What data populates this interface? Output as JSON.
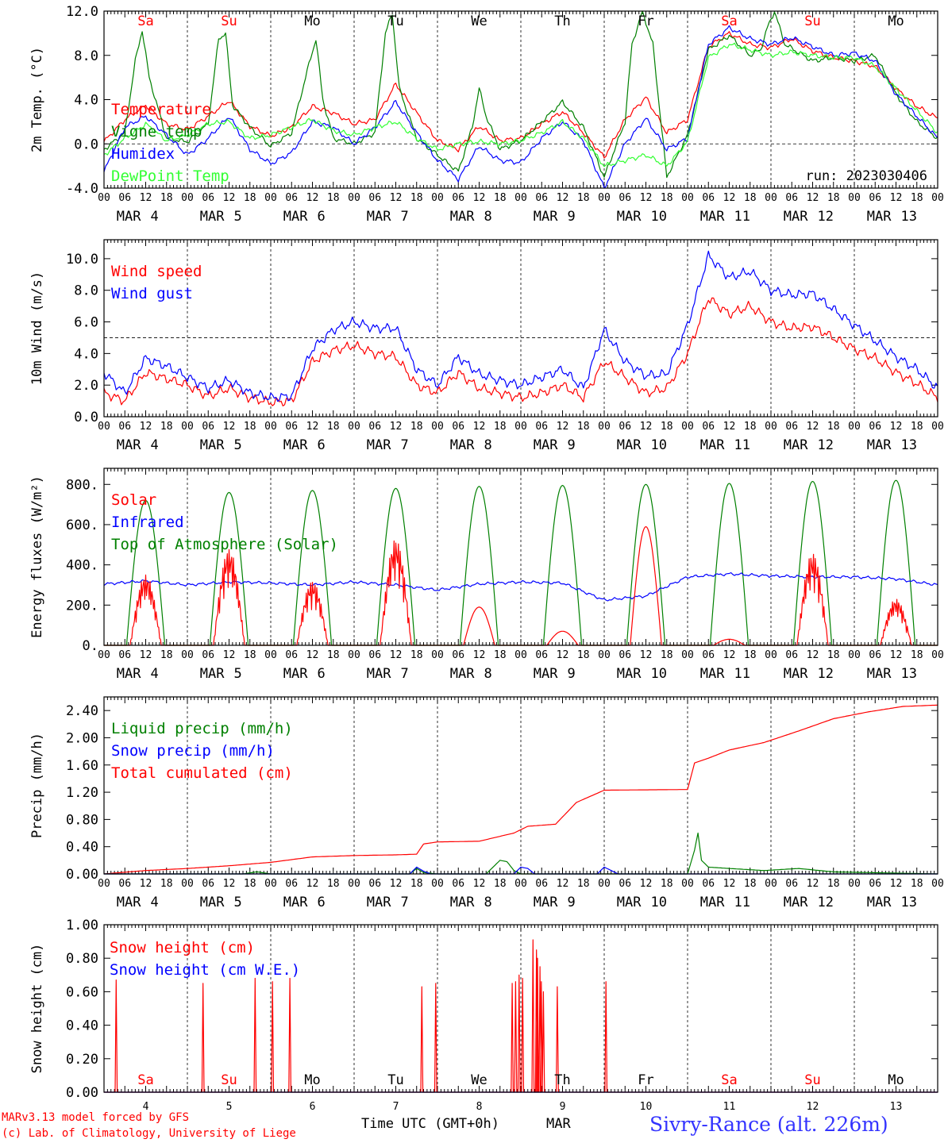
{
  "colors": {
    "red": "#ff0000",
    "green": "#008000",
    "blue": "#0000ff",
    "lightgreen": "#33ff33",
    "black": "#000000",
    "title": "#3333ff"
  },
  "days": {
    "numbers": [
      "4",
      "5",
      "6",
      "7",
      "8",
      "9",
      "10",
      "11",
      "12",
      "13"
    ],
    "month": "MAR",
    "names": [
      "Sa",
      "Su",
      "Mo",
      "Tu",
      "We",
      "Th",
      "Fr",
      "Sa",
      "Su",
      "Mo"
    ],
    "name_colors": [
      "red",
      "red",
      "black",
      "black",
      "black",
      "black",
      "black",
      "red",
      "red",
      "black"
    ],
    "hour_labels": [
      "00",
      "06",
      "12",
      "18"
    ]
  },
  "run_label": "run: 2023030406",
  "footer": {
    "credit1": "MARv3.13 model forced by GFS",
    "credit2": "(c) Lab. of Climatology, University of Liege",
    "time_label": "Time UTC (GMT+0h)",
    "month_label": "MAR",
    "station": "Sivry-Rance (alt. 226m)"
  },
  "chart_data": [
    {
      "type": "line",
      "ylabel": "2m Temp. (°C)",
      "ylim": [
        -4,
        12
      ],
      "yticks": [
        "-4.0",
        "0.0",
        "4.0",
        "8.0",
        "12.0"
      ],
      "hline": 0,
      "legend": [
        {
          "name": "Temperature",
          "color": "red"
        },
        {
          "name": "Vigne temp",
          "color": "green"
        },
        {
          "name": "Humidex",
          "color": "blue"
        },
        {
          "name": "DewPoint Temp",
          "color": "lightgreen"
        }
      ],
      "series": [
        {
          "name": "Temperature",
          "color": "red",
          "x": [
            0,
            6,
            12,
            18,
            24,
            30,
            36,
            42,
            48,
            54,
            60,
            66,
            72,
            78,
            84,
            90,
            96,
            102,
            108,
            114,
            120,
            126,
            132,
            138,
            144,
            150,
            156,
            162,
            168,
            174,
            180,
            186,
            192,
            198,
            204,
            210,
            216,
            222,
            228,
            234,
            240
          ],
          "y": [
            0.2,
            2.2,
            3.5,
            1.8,
            1.3,
            2.5,
            3.9,
            1.6,
            0.7,
            1.5,
            3.4,
            2.8,
            1.8,
            2.2,
            5.4,
            2.8,
            0.3,
            -0.5,
            1.6,
            0.3,
            0.5,
            1.8,
            2.9,
            1.0,
            -1.2,
            2.2,
            4.2,
            1.0,
            2.2,
            8.8,
            10.0,
            9.0,
            8.7,
            9.5,
            8.4,
            7.8,
            7.5,
            7.0,
            5.0,
            3.4,
            2.3
          ]
        },
        {
          "name": "Vigne temp",
          "color": "green",
          "x": [
            0,
            6,
            9,
            11,
            13,
            18,
            24,
            30,
            33,
            35,
            37,
            42,
            48,
            54,
            58,
            61,
            63,
            66,
            72,
            78,
            81,
            83,
            85,
            90,
            96,
            102,
            106,
            108,
            110,
            114,
            120,
            126,
            132,
            138,
            144,
            150,
            152,
            155,
            158,
            162,
            168,
            174,
            180,
            186,
            189,
            191,
            193,
            196,
            204,
            210,
            216,
            222,
            228,
            234,
            240
          ],
          "y": [
            -0.5,
            1.0,
            7.5,
            10.3,
            6.0,
            0.5,
            0.2,
            1.8,
            9.5,
            10.0,
            3.5,
            1.5,
            -0.2,
            1.0,
            6.0,
            9.5,
            4.0,
            0.5,
            0.0,
            1.0,
            10.0,
            11.8,
            5.0,
            0.5,
            -1.0,
            -2.5,
            1.5,
            5.0,
            2.5,
            -0.5,
            0.3,
            2.0,
            3.8,
            1.5,
            -3.0,
            2.0,
            9.0,
            12.0,
            9.0,
            -3.0,
            0.8,
            8.5,
            9.8,
            8.0,
            8.5,
            10.5,
            12.0,
            9.0,
            7.5,
            7.8,
            7.5,
            8.0,
            4.5,
            2.0,
            0.5
          ]
        },
        {
          "name": "Humidex",
          "color": "blue",
          "x": [
            0,
            6,
            12,
            18,
            24,
            30,
            36,
            42,
            48,
            54,
            60,
            66,
            72,
            78,
            84,
            90,
            96,
            102,
            108,
            114,
            120,
            126,
            132,
            138,
            144,
            150,
            156,
            162,
            168,
            174,
            180,
            186,
            192,
            198,
            204,
            210,
            216,
            222,
            228,
            234,
            240
          ],
          "y": [
            -2.5,
            1.5,
            2.5,
            0.8,
            -1.0,
            0.5,
            2.5,
            -0.5,
            -1.8,
            -0.8,
            2.0,
            1.5,
            0.0,
            1.5,
            3.8,
            1.0,
            -1.5,
            -3.2,
            -0.2,
            -1.5,
            -1.7,
            0.5,
            2.0,
            0.3,
            -4.0,
            0.0,
            2.3,
            -0.5,
            0.5,
            9.0,
            10.5,
            9.5,
            9.0,
            9.6,
            8.8,
            8.0,
            8.2,
            7.5,
            4.5,
            2.5,
            0.5
          ]
        },
        {
          "name": "DewPoint Temp",
          "color": "lightgreen",
          "x": [
            0,
            6,
            12,
            18,
            24,
            30,
            36,
            42,
            48,
            54,
            60,
            66,
            72,
            78,
            84,
            90,
            96,
            102,
            108,
            114,
            120,
            126,
            132,
            138,
            144,
            150,
            156,
            162,
            168,
            174,
            180,
            186,
            192,
            198,
            204,
            210,
            216,
            222,
            228,
            234,
            240
          ],
          "y": [
            -1.0,
            0.5,
            1.8,
            0.3,
            0.8,
            1.8,
            2.0,
            0.5,
            0.8,
            1.5,
            2.2,
            1.2,
            0.8,
            1.5,
            2.0,
            0.5,
            -0.5,
            0.0,
            0.2,
            0.0,
            0.3,
            1.0,
            2.0,
            0.5,
            -2.0,
            -1.5,
            -1.0,
            -2.0,
            0.2,
            7.8,
            9.0,
            8.5,
            8.0,
            8.3,
            8.0,
            7.8,
            7.8,
            7.0,
            5.0,
            3.0,
            1.0
          ]
        }
      ]
    },
    {
      "type": "line",
      "ylabel": "10m Wind (m/s)",
      "ylim": [
        0,
        11.2
      ],
      "yticks": [
        "0.0",
        "2.0",
        "4.0",
        "6.0",
        "8.0",
        "10.0"
      ],
      "hline": 5,
      "legend": [
        {
          "name": "Wind speed",
          "color": "red"
        },
        {
          "name": "Wind gust",
          "color": "blue"
        }
      ],
      "series": [
        {
          "name": "Wind speed",
          "color": "red",
          "x": [
            0,
            6,
            12,
            18,
            24,
            30,
            36,
            42,
            48,
            54,
            60,
            66,
            72,
            78,
            84,
            90,
            96,
            102,
            108,
            114,
            120,
            126,
            132,
            138,
            144,
            150,
            156,
            162,
            168,
            174,
            180,
            186,
            192,
            198,
            204,
            210,
            216,
            222,
            228,
            234,
            240
          ],
          "y": [
            1.5,
            1.0,
            2.8,
            2.4,
            2.0,
            1.3,
            1.8,
            1.2,
            0.9,
            1.0,
            3.5,
            4.2,
            4.5,
            4.0,
            3.8,
            2.0,
            1.5,
            2.8,
            1.8,
            1.5,
            1.2,
            1.5,
            2.0,
            1.2,
            3.5,
            2.5,
            1.5,
            1.8,
            4.0,
            7.5,
            6.5,
            7.0,
            6.0,
            5.6,
            5.7,
            5.0,
            4.3,
            3.7,
            2.8,
            2.1,
            1.2
          ]
        },
        {
          "name": "Wind gust",
          "color": "blue",
          "x": [
            0,
            6,
            12,
            18,
            24,
            30,
            36,
            42,
            48,
            54,
            60,
            66,
            72,
            78,
            84,
            90,
            96,
            102,
            108,
            114,
            120,
            126,
            132,
            138,
            144,
            150,
            156,
            162,
            168,
            174,
            180,
            186,
            192,
            198,
            204,
            210,
            216,
            222,
            228,
            234,
            240
          ],
          "y": [
            2.8,
            1.5,
            3.7,
            3.2,
            2.5,
            1.8,
            2.3,
            1.5,
            1.2,
            1.3,
            4.3,
            5.5,
            6.0,
            5.6,
            5.6,
            3.0,
            2.0,
            3.8,
            2.7,
            2.3,
            2.0,
            2.5,
            3.0,
            1.8,
            5.5,
            3.5,
            2.6,
            2.7,
            5.8,
            10.2,
            8.8,
            9.2,
            8.0,
            7.7,
            7.8,
            6.8,
            5.8,
            4.8,
            3.8,
            3.0,
            1.8
          ]
        }
      ]
    },
    {
      "type": "line",
      "ylabel": "Energy fluxes (W/m²)",
      "ylim": [
        0,
        880
      ],
      "yticks": [
        "0.",
        "200.",
        "400.",
        "600.",
        "800."
      ],
      "legend": [
        {
          "name": "Solar",
          "color": "red"
        },
        {
          "name": "Infrared",
          "color": "blue"
        },
        {
          "name": "Top of Atmosphere (Solar)",
          "color": "green"
        }
      ],
      "toa": {
        "peak_hour": 12,
        "half_width_hours": 5.5,
        "peaks": [
          720,
          760,
          770,
          780,
          790,
          795,
          800,
          805,
          815,
          820
        ]
      },
      "solar_peaks": [
        350,
        480,
        320,
        530,
        190,
        70,
        590,
        30,
        460,
        230
      ],
      "infrared": {
        "x": [
          0,
          12,
          24,
          36,
          48,
          60,
          72,
          84,
          96,
          108,
          120,
          132,
          144,
          156,
          168,
          180,
          192,
          204,
          216,
          228,
          240
        ],
        "y": [
          305,
          320,
          300,
          315,
          310,
          300,
          315,
          300,
          275,
          305,
          315,
          310,
          225,
          245,
          340,
          355,
          345,
          340,
          340,
          330,
          300
        ]
      }
    },
    {
      "type": "line",
      "ylabel": "Precip (mm/h)",
      "ylim": [
        0,
        2.6
      ],
      "yticks": [
        "0.00",
        "0.40",
        "0.80",
        "1.20",
        "1.60",
        "2.00",
        "2.40"
      ],
      "legend": [
        {
          "name": "Liquid precip (mm/h)",
          "color": "green"
        },
        {
          "name": "Snow precip (mm/h)",
          "color": "blue"
        },
        {
          "name": "Total cumulated (cm)",
          "color": "red"
        }
      ],
      "series": [
        {
          "name": "Total cumulated (cm)",
          "color": "red",
          "x": [
            0,
            12,
            24,
            36,
            48,
            60,
            72,
            84,
            90,
            92,
            96,
            108,
            118,
            122,
            130,
            136,
            144,
            168,
            170,
            174,
            180,
            190,
            200,
            210,
            220,
            230,
            240
          ],
          "y": [
            0.0,
            0.05,
            0.08,
            0.12,
            0.17,
            0.25,
            0.27,
            0.28,
            0.29,
            0.44,
            0.47,
            0.48,
            0.6,
            0.7,
            0.73,
            1.05,
            1.23,
            1.24,
            1.63,
            1.7,
            1.82,
            1.93,
            2.1,
            2.28,
            2.38,
            2.46,
            2.48
          ]
        },
        {
          "name": "Liquid precip (mm/h)",
          "color": "green",
          "x": [
            0,
            40,
            44,
            48,
            88,
            90,
            92,
            96,
            110,
            114,
            116,
            118,
            120,
            168,
            170,
            171,
            172,
            174,
            180,
            190,
            200,
            210,
            220,
            240
          ],
          "y": [
            0.0,
            0.0,
            0.03,
            0.0,
            0.0,
            0.08,
            0.02,
            0.0,
            0.0,
            0.2,
            0.18,
            0.05,
            0.0,
            0.0,
            0.35,
            0.6,
            0.2,
            0.1,
            0.08,
            0.05,
            0.08,
            0.03,
            0.02,
            0.0
          ]
        },
        {
          "name": "Snow precip (mm/h)",
          "color": "blue",
          "x": [
            0,
            88,
            90,
            92,
            94,
            118,
            120,
            122,
            124,
            142,
            144,
            146,
            148,
            240
          ],
          "y": [
            0.0,
            0.0,
            0.1,
            0.04,
            0.0,
            0.0,
            0.1,
            0.08,
            0.0,
            0.0,
            0.1,
            0.05,
            0.0,
            0.0
          ]
        }
      ]
    },
    {
      "type": "line",
      "ylabel": "Snow height (cm)",
      "ylim": [
        0,
        1.0
      ],
      "yticks": [
        "0.00",
        "0.20",
        "0.40",
        "0.60",
        "0.80",
        "1.00"
      ],
      "legend": [
        {
          "name": "Snow height (cm)",
          "color": "red"
        },
        {
          "name": "Snow height (cm W.E.)",
          "color": "blue"
        }
      ],
      "spikes": {
        "x": [
          3.5,
          28.5,
          43.5,
          48.5,
          53.5,
          91.5,
          95.5,
          117.5,
          118.5,
          119.5,
          120.5,
          123.5,
          124.5,
          124.8,
          125.5,
          125.9,
          126.5,
          130.5,
          144.5
        ],
        "y": [
          0.67,
          0.65,
          0.68,
          0.66,
          0.68,
          0.63,
          0.65,
          0.65,
          0.66,
          0.7,
          0.68,
          0.91,
          0.85,
          0.8,
          0.75,
          0.66,
          0.6,
          0.63,
          0.66
        ]
      }
    }
  ]
}
